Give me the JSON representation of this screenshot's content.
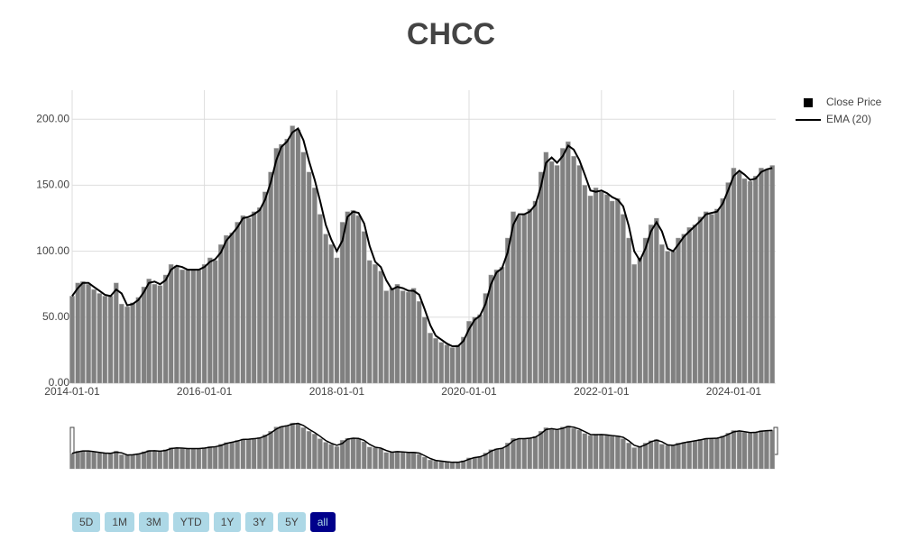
{
  "chart_data": {
    "type": "bar",
    "title": "CHCC",
    "x": [
      "2014-01-01",
      "2014-02-01",
      "2014-03-01",
      "2014-04-01",
      "2014-05-01",
      "2014-06-01",
      "2014-07-01",
      "2014-08-01",
      "2014-09-01",
      "2014-10-01",
      "2014-11-01",
      "2014-12-01",
      "2015-01-01",
      "2015-02-01",
      "2015-03-01",
      "2015-04-01",
      "2015-05-01",
      "2015-06-01",
      "2015-07-01",
      "2015-08-01",
      "2015-09-01",
      "2015-10-01",
      "2015-11-01",
      "2015-12-01",
      "2016-01-01",
      "2016-02-01",
      "2016-03-01",
      "2016-04-01",
      "2016-05-01",
      "2016-06-01",
      "2016-07-01",
      "2016-08-01",
      "2016-09-01",
      "2016-10-01",
      "2016-11-01",
      "2016-12-01",
      "2017-01-01",
      "2017-02-01",
      "2017-03-01",
      "2017-04-01",
      "2017-05-01",
      "2017-06-01",
      "2017-07-01",
      "2017-08-01",
      "2017-09-01",
      "2017-10-01",
      "2017-11-01",
      "2017-12-01",
      "2018-01-01",
      "2018-02-01",
      "2018-03-01",
      "2018-04-01",
      "2018-05-01",
      "2018-06-01",
      "2018-07-01",
      "2018-08-01",
      "2018-09-01",
      "2018-10-01",
      "2018-11-01",
      "2018-12-01",
      "2019-01-01",
      "2019-02-01",
      "2019-03-01",
      "2019-04-01",
      "2019-05-01",
      "2019-06-01",
      "2019-07-01",
      "2019-08-01",
      "2019-09-01",
      "2019-10-01",
      "2019-11-01",
      "2019-12-01",
      "2020-01-01",
      "2020-02-01",
      "2020-03-01",
      "2020-04-01",
      "2020-05-01",
      "2020-06-01",
      "2020-07-01",
      "2020-08-01",
      "2020-09-01",
      "2020-10-01",
      "2020-11-01",
      "2020-12-01",
      "2021-01-01",
      "2021-02-01",
      "2021-03-01",
      "2021-04-01",
      "2021-05-01",
      "2021-06-01",
      "2021-07-01",
      "2021-08-01",
      "2021-09-01",
      "2021-10-01",
      "2021-11-01",
      "2021-12-01",
      "2022-01-01",
      "2022-02-01",
      "2022-03-01",
      "2022-04-01",
      "2022-05-01",
      "2022-06-01",
      "2022-07-01",
      "2022-08-01",
      "2022-09-01",
      "2022-10-01",
      "2022-11-01",
      "2022-12-01",
      "2023-01-01",
      "2023-02-01",
      "2023-03-01",
      "2023-04-01",
      "2023-05-01",
      "2023-06-01",
      "2023-07-01",
      "2023-08-01",
      "2023-09-01",
      "2023-10-01",
      "2023-11-01",
      "2023-12-01",
      "2024-01-01",
      "2024-02-01",
      "2024-03-01",
      "2024-04-01",
      "2024-05-01",
      "2024-06-01",
      "2024-07-01",
      "2024-08-01"
    ],
    "series": [
      {
        "name": "Close Price",
        "type": "bar",
        "color": "#808080",
        "values": [
          66,
          76,
          77,
          75,
          71,
          68,
          66,
          66,
          76,
          60,
          58,
          61,
          65,
          73,
          79,
          75,
          74,
          82,
          90,
          89,
          86,
          86,
          86,
          86,
          90,
          95,
          93,
          105,
          112,
          114,
          122,
          127,
          125,
          130,
          133,
          145,
          160,
          178,
          181,
          185,
          195,
          192,
          175,
          160,
          148,
          128,
          113,
          105,
          95,
          122,
          130,
          131,
          127,
          115,
          93,
          90,
          85,
          70,
          72,
          75,
          70,
          69,
          72,
          62,
          50,
          38,
          34,
          31,
          29,
          27,
          29,
          35,
          47,
          50,
          52,
          68,
          82,
          86,
          88,
          110,
          130,
          127,
          128,
          132,
          138,
          160,
          175,
          168,
          165,
          178,
          183,
          172,
          165,
          150,
          142,
          148,
          145,
          143,
          138,
          140,
          128,
          110,
          90,
          95,
          110,
          120,
          125,
          105,
          100,
          100,
          110,
          113,
          118,
          120,
          126,
          130,
          128,
          132,
          140,
          152,
          163,
          160,
          155,
          153,
          157,
          163,
          162,
          165
        ]
      },
      {
        "name": "EMA (20)",
        "type": "line",
        "color": "#000000",
        "values": [
          66,
          72,
          76,
          76,
          73,
          70,
          67,
          66,
          71,
          68,
          59,
          60,
          63,
          69,
          76,
          77,
          75,
          78,
          86,
          89,
          88,
          86,
          86,
          86,
          88,
          92,
          94,
          99,
          108,
          113,
          118,
          125,
          126,
          128,
          131,
          139,
          152,
          169,
          179,
          183,
          190,
          193,
          184,
          168,
          154,
          138,
          120,
          109,
          100,
          108,
          126,
          130,
          129,
          121,
          104,
          92,
          88,
          78,
          71,
          73,
          72,
          70,
          70,
          67,
          56,
          44,
          36,
          33,
          30,
          28,
          28,
          32,
          41,
          48,
          51,
          60,
          75,
          84,
          87,
          99,
          120,
          128,
          128,
          130,
          135,
          149,
          167,
          171,
          167,
          172,
          180,
          177,
          169,
          158,
          146,
          145,
          146,
          144,
          141,
          139,
          134,
          119,
          100,
          93,
          102,
          115,
          122,
          115,
          102,
          100,
          105,
          111,
          115,
          119,
          123,
          128,
          129,
          130,
          136,
          146,
          157,
          161,
          158,
          154,
          155,
          160,
          162,
          163
        ]
      }
    ],
    "xlim": [
      "2014-01-01",
      "2024-08-20"
    ],
    "xticks": [
      "2014-01-01",
      "2016-01-01",
      "2018-01-01",
      "2020-01-01",
      "2022-01-01",
      "2024-01-01"
    ],
    "ylim": [
      0,
      222
    ],
    "yticks": [
      {
        "value": 0,
        "label": "0.00"
      },
      {
        "value": 50,
        "label": "50.00"
      },
      {
        "value": 100,
        "label": "100.00"
      },
      {
        "value": 150,
        "label": "150.00"
      },
      {
        "value": 200,
        "label": "200.00"
      }
    ],
    "grid": true,
    "legend": "top-right",
    "range_buttons": [
      "5D",
      "1M",
      "3M",
      "YTD",
      "1Y",
      "3Y",
      "5Y",
      "all"
    ],
    "active_button": "all"
  }
}
